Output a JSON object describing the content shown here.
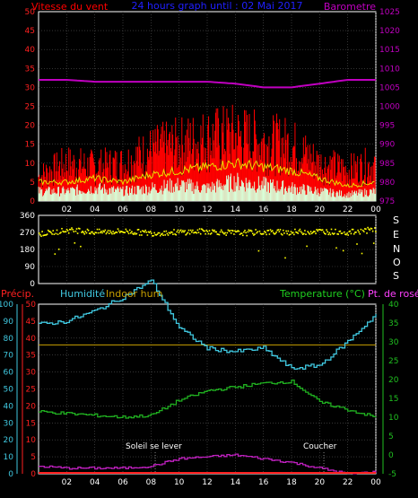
{
  "header": {
    "wind_label": "Vitesse du vent",
    "title": "24 hours graph until : 02 Mai 2017",
    "barometer_label": "Barometre"
  },
  "colors": {
    "wind": "#ff0000",
    "gust": "#e8e000",
    "avg_wind": "#d8ffd8",
    "barometer": "#c000c0",
    "direction": "#ffff00",
    "humidity": "#40c8e0",
    "temperature": "#20b020",
    "dewpoint": "#c020c0",
    "rain": "#ff2020",
    "indoor_hum": "#c8a000",
    "frame": "#ffffff"
  },
  "x_ticks": [
    "02",
    "04",
    "06",
    "08",
    "10",
    "12",
    "14",
    "16",
    "18",
    "20",
    "22",
    "00"
  ],
  "compass_letters": [
    "S",
    "E",
    "N",
    "O",
    "S"
  ],
  "bottom_labels": {
    "precip": "Précip.",
    "humidity": "Humidité",
    "indoor_hum": "Indoor hum",
    "temperature": "Temperature (°C)",
    "dewpoint": "Pt. de rosée"
  },
  "annotations": {
    "sunrise": "Soleil se lever",
    "sunset": "Coucher"
  },
  "chart_data": [
    {
      "type": "area",
      "title": "24 hours graph until : 02 Mai 2017",
      "ylabel": "Vitesse du vent",
      "y2label": "Barometre",
      "y_ticks": [
        0,
        5,
        10,
        15,
        20,
        25,
        30,
        35,
        40,
        45,
        50
      ],
      "y2_ticks": [
        975,
        980,
        985,
        990,
        995,
        1000,
        1005,
        1010,
        1015,
        1020,
        1025
      ],
      "ylim": [
        0,
        50
      ],
      "y2lim": [
        975,
        1025
      ],
      "x_hours": [
        0,
        2,
        4,
        6,
        8,
        10,
        12,
        14,
        16,
        18,
        20,
        22,
        24
      ],
      "series": [
        {
          "name": "Vitesse du vent (gusts)",
          "axis": "left",
          "values": [
            8,
            12,
            11,
            12,
            16,
            18,
            20,
            21,
            19,
            18,
            12,
            10,
            12
          ]
        },
        {
          "name": "Wind speed",
          "axis": "left",
          "values": [
            5,
            5,
            6,
            5,
            7,
            8,
            9,
            10,
            9,
            8,
            6,
            4,
            5
          ]
        },
        {
          "name": "Average wind",
          "axis": "left",
          "values": [
            3,
            3,
            4,
            3,
            4,
            5,
            4,
            6,
            5,
            4,
            3,
            2,
            3
          ]
        },
        {
          "name": "Barometre",
          "axis": "right",
          "values": [
            1007,
            1007,
            1006.5,
            1006.5,
            1006.5,
            1006.5,
            1006.5,
            1006,
            1005,
            1005,
            1006,
            1007,
            1007
          ]
        }
      ],
      "grid": true
    },
    {
      "type": "scatter",
      "y_ticks": [
        0,
        90,
        180,
        270,
        360
      ],
      "ylim": [
        0,
        360
      ],
      "series": [
        {
          "name": "Wind direction",
          "x_hours": [
            0,
            2,
            4,
            6,
            8,
            10,
            12,
            14,
            16,
            18,
            20,
            22,
            24
          ],
          "values": [
            260,
            280,
            270,
            275,
            265,
            270,
            275,
            265,
            270,
            270,
            275,
            268,
            285
          ]
        }
      ],
      "grid": true
    },
    {
      "type": "line",
      "y_ticks_precip": [
        0,
        10,
        20,
        30,
        40,
        50,
        60,
        70,
        80,
        90,
        100
      ],
      "y_ticks_humidity": [
        0,
        5,
        10,
        15,
        20,
        25,
        30,
        35,
        40,
        45,
        50
      ],
      "y_ticks_temp": [
        -5,
        0,
        5,
        10,
        15,
        20,
        25,
        30,
        35,
        40
      ],
      "ylim_precip": [
        0,
        100
      ],
      "ylim_humidity": [
        0,
        50
      ],
      "ylim_temp": [
        -5,
        40
      ],
      "x_hours": [
        0,
        2,
        4,
        6,
        8,
        10,
        12,
        14,
        16,
        18,
        20,
        22,
        24
      ],
      "series": [
        {
          "name": "Humidité",
          "axis": "humidity",
          "values": [
            44,
            45,
            48,
            52,
            57,
            43,
            37,
            36,
            37,
            31,
            32,
            39,
            47
          ]
        },
        {
          "name": "Temperature (°C)",
          "axis": "temp",
          "values": [
            11.5,
            11,
            10.5,
            10,
            10.5,
            14.5,
            17,
            18,
            19,
            19.5,
            14,
            12,
            10
          ]
        },
        {
          "name": "Pt. de rosée",
          "axis": "temp",
          "values": [
            -3,
            -3.5,
            -3.5,
            -3.5,
            -3,
            -1,
            -0.5,
            0,
            -1,
            -2,
            -3.5,
            -5,
            -4.5
          ]
        },
        {
          "name": "Précip.",
          "axis": "precip",
          "values": [
            0,
            0,
            0,
            0,
            0,
            0,
            0,
            0,
            0,
            0,
            0,
            0,
            0
          ]
        },
        {
          "name": "Indoor hum",
          "axis": "humidity",
          "values": [
            38,
            38,
            38,
            38,
            38,
            38,
            38,
            38,
            38,
            38,
            38,
            38,
            38
          ]
        }
      ],
      "grid": true
    }
  ]
}
